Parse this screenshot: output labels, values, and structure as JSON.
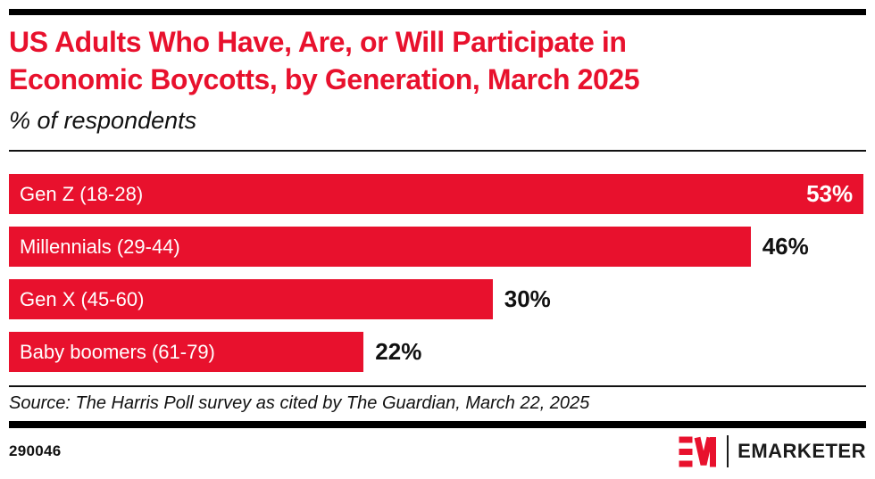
{
  "header": {
    "title_wrapped": "US Adults Who Have, Are, or Will Participate in\nEconomic Boycotts, by Generation, March 2025",
    "subtitle": "% of respondents"
  },
  "chart_data": {
    "type": "bar",
    "orientation": "horizontal",
    "title": "US Adults Who Have, Are, or Will Participate in Economic Boycotts, by Generation, March 2025",
    "subtitle_unit": "% of respondents",
    "categories": [
      "Gen Z (18-28)",
      "Millennials (29-44)",
      "Gen X (45-60)",
      "Baby boomers (61-79)"
    ],
    "values": [
      53,
      46,
      30,
      22
    ],
    "value_labels": [
      "53%",
      "46%",
      "30%",
      "22%"
    ],
    "xlim": [
      0,
      53
    ],
    "grid": false,
    "legend_position": "none",
    "bar_color": "#E8112D",
    "category_label_position": "inside-left",
    "value_label_position": [
      "inside-right",
      "outside-right",
      "outside-right",
      "outside-right"
    ]
  },
  "source": {
    "text": "Source: The Harris Poll survey as cited by The Guardian, March 22, 2025"
  },
  "footer": {
    "chart_id": "290046",
    "brand": "EMARKETER",
    "logo_monogram": "EM"
  },
  "colors": {
    "accent_red": "#E8112D",
    "text_black": "#111111",
    "rule_black": "#000000",
    "bar_label_white": "#FFFFFF"
  }
}
